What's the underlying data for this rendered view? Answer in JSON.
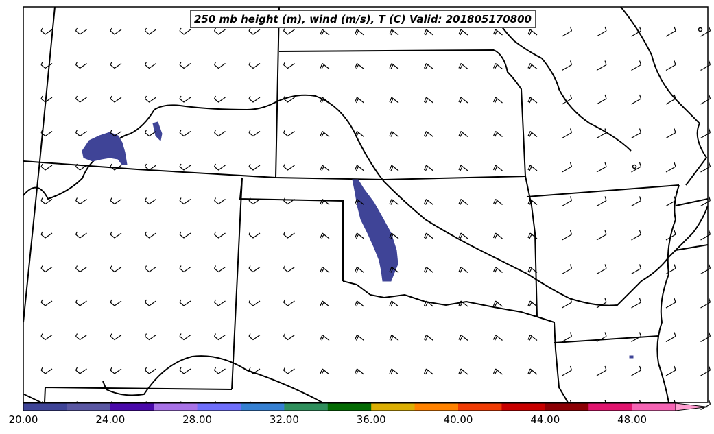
{
  "title": "250 mb height (m), wind (m/s), T (C) Valid: 201805170800",
  "colorbar": {
    "tick_labels": [
      "20.00",
      "24.00",
      "28.00",
      "32.00",
      "36.00",
      "40.00",
      "44.00",
      "48.00"
    ],
    "range": [
      20,
      51.6
    ],
    "colors": [
      "#3f4497",
      "#5a57a3",
      "#4a0aaa",
      "#a872e7",
      "#6f6ffb",
      "#3680d2",
      "#2f8f5c",
      "#046b04",
      "#dcaf05",
      "#ff8200",
      "#f03c05",
      "#c80000",
      "#8c0005",
      "#e0146e",
      "#f564b4",
      "#ffa0d2"
    ],
    "extend": "max"
  },
  "wind_barbs_color": "#000000",
  "shaded_field_color": "#3f4497"
}
